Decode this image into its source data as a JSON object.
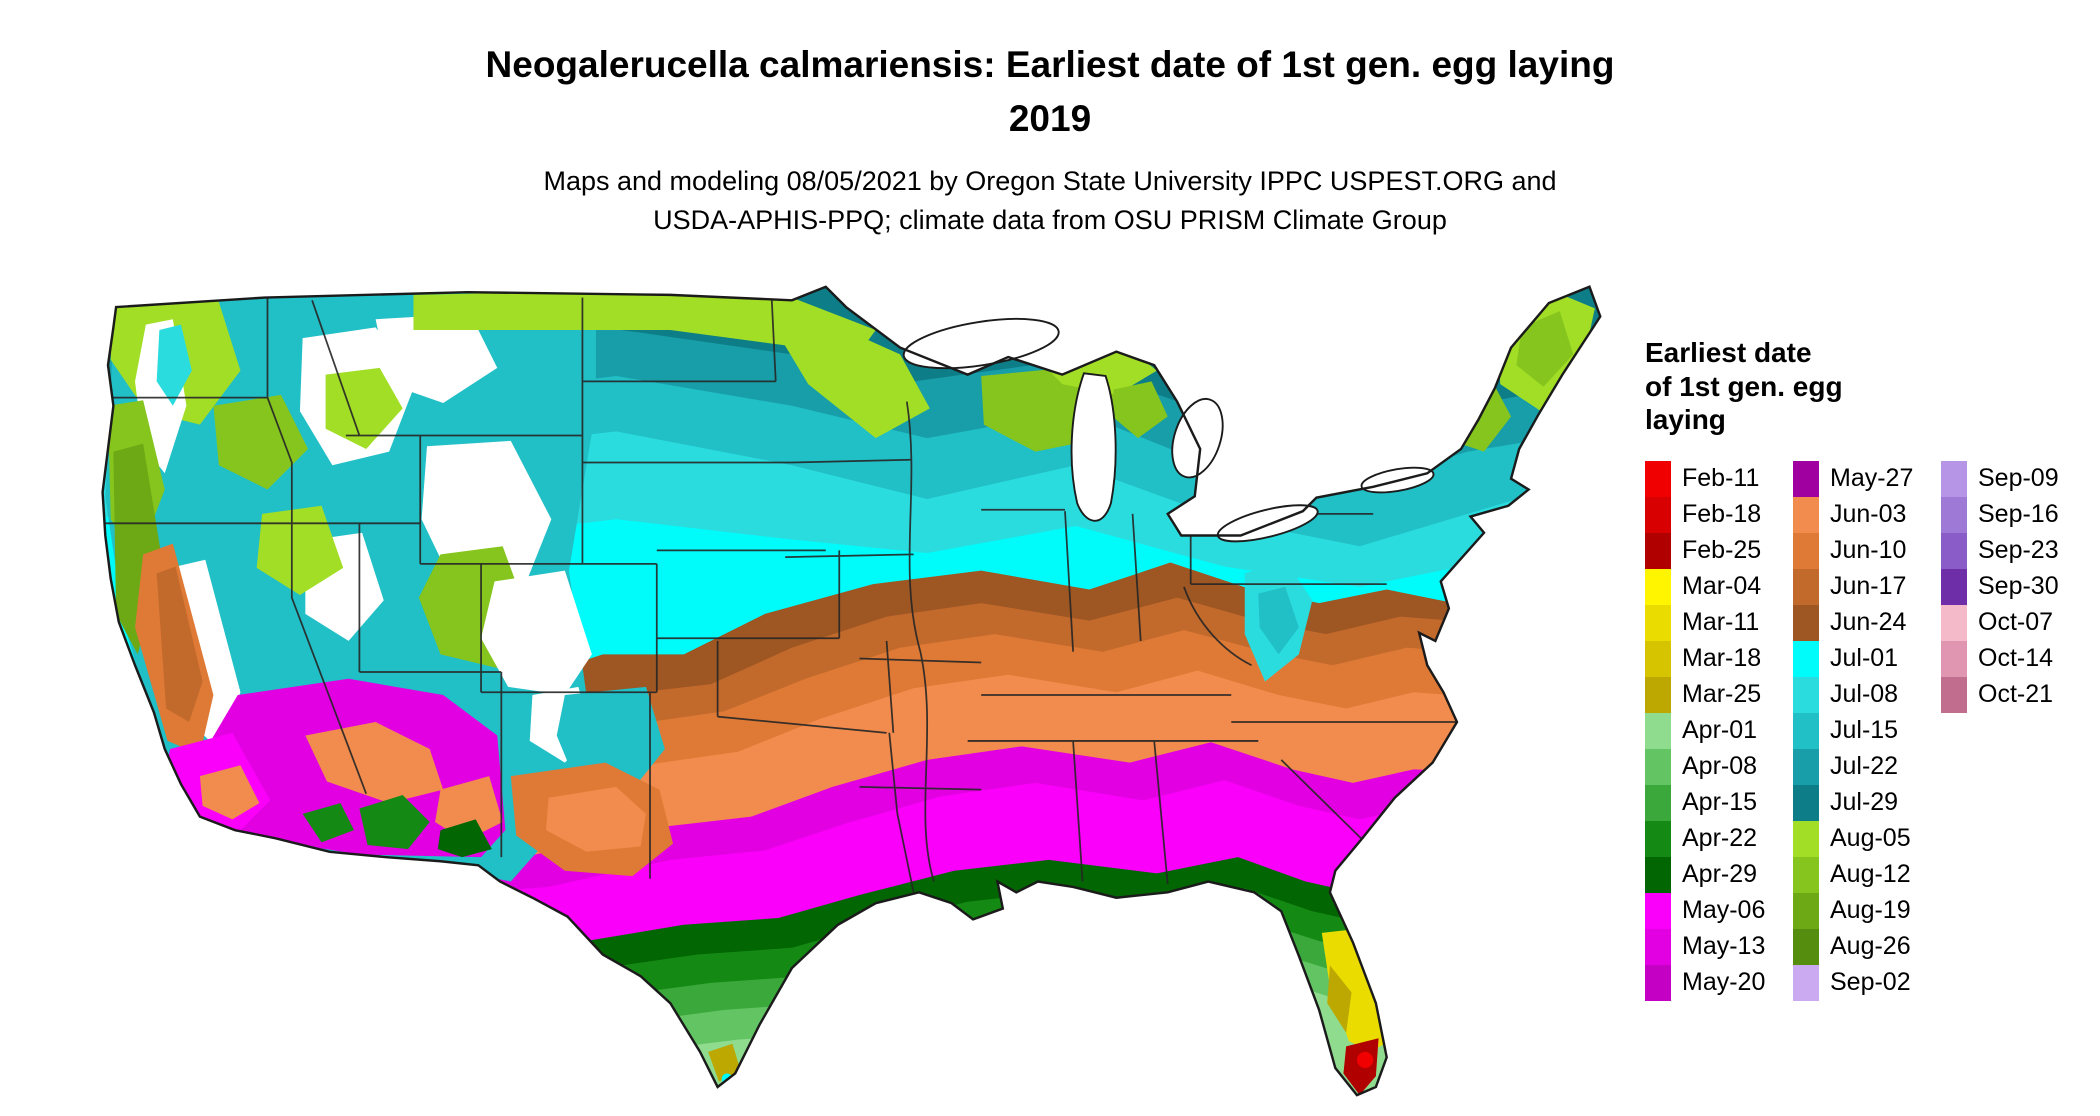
{
  "title": {
    "line1": "Neogalerucella calmariensis: Earliest date of 1st gen. egg laying",
    "line2": "2019"
  },
  "subtitle": {
    "line1": "Maps and modeling 08/05/2021 by Oregon State University IPPC USPEST.ORG and",
    "line2": "USDA-APHIS-PPQ; climate data from OSU PRISM Climate Group"
  },
  "legend": {
    "title_lines": [
      "Earliest date",
      "of 1st gen. egg",
      "laying"
    ],
    "columns": [
      15,
      15,
      7
    ],
    "entries": [
      {
        "label": "Feb-11",
        "color": "#F00000"
      },
      {
        "label": "Feb-18",
        "color": "#D80000"
      },
      {
        "label": "Feb-25",
        "color": "#B00000"
      },
      {
        "label": "Mar-04",
        "color": "#FFF500"
      },
      {
        "label": "Mar-11",
        "color": "#EBDC00"
      },
      {
        "label": "Mar-18",
        "color": "#D6C400"
      },
      {
        "label": "Mar-25",
        "color": "#BCA800"
      },
      {
        "label": "Apr-01",
        "color": "#8FDC8F"
      },
      {
        "label": "Apr-08",
        "color": "#62C462"
      },
      {
        "label": "Apr-15",
        "color": "#3AA83A"
      },
      {
        "label": "Apr-22",
        "color": "#148A14"
      },
      {
        "label": "Apr-29",
        "color": "#026602"
      },
      {
        "label": "May-06",
        "color": "#FA00FA"
      },
      {
        "label": "May-13",
        "color": "#E200E2"
      },
      {
        "label": "May-20",
        "color": "#C400C4"
      },
      {
        "label": "May-27",
        "color": "#A100A1"
      },
      {
        "label": "Jun-03",
        "color": "#F28C4E"
      },
      {
        "label": "Jun-10",
        "color": "#DE7A36"
      },
      {
        "label": "Jun-17",
        "color": "#C2692C"
      },
      {
        "label": "Jun-24",
        "color": "#9E5622"
      },
      {
        "label": "Jul-01",
        "color": "#00FBFB"
      },
      {
        "label": "Jul-08",
        "color": "#2BDCDF"
      },
      {
        "label": "Jul-15",
        "color": "#21BFC6"
      },
      {
        "label": "Jul-22",
        "color": "#189EA8"
      },
      {
        "label": "Jul-29",
        "color": "#0D7E88"
      },
      {
        "label": "Aug-05",
        "color": "#A2DE26"
      },
      {
        "label": "Aug-12",
        "color": "#85C51D"
      },
      {
        "label": "Aug-19",
        "color": "#6CA915"
      },
      {
        "label": "Aug-26",
        "color": "#558D0E"
      },
      {
        "label": "Sep-02",
        "color": "#CBAAF2"
      },
      {
        "label": "Sep-09",
        "color": "#B795E6"
      },
      {
        "label": "Sep-16",
        "color": "#9F79D6"
      },
      {
        "label": "Sep-23",
        "color": "#8A5CC8"
      },
      {
        "label": "Sep-30",
        "color": "#6E2EA8"
      },
      {
        "label": "Oct-07",
        "color": "#F5BACA"
      },
      {
        "label": "Oct-14",
        "color": "#E095B0"
      },
      {
        "label": "Oct-21",
        "color": "#C16D8E"
      }
    ]
  }
}
